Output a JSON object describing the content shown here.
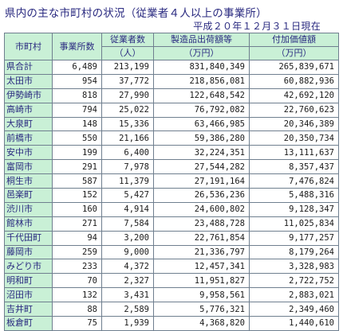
{
  "title": "県内の主な市町村の状況（従業者４人以上の事業所）",
  "subtitle": "平成２０年１２月３１日現在",
  "headers": [
    "市町村",
    "事業所数",
    "従業者数",
    "製造品出荷額等",
    "付加価値額"
  ],
  "units": [
    "",
    "",
    "（人）",
    "（万円）",
    "（万円）"
  ],
  "rows": [
    {
      "name": "県合計",
      "establishments": "6,489",
      "employees": "213,199",
      "shipments": "831,840,349",
      "value_added": "265,839,671"
    },
    {
      "name": "太田市",
      "establishments": "954",
      "employees": "37,772",
      "shipments": "218,856,081",
      "value_added": "60,882,936"
    },
    {
      "name": "伊勢崎市",
      "establishments": "818",
      "employees": "27,990",
      "shipments": "122,648,542",
      "value_added": "42,692,120"
    },
    {
      "name": "高崎市",
      "establishments": "794",
      "employees": "25,022",
      "shipments": "76,792,082",
      "value_added": "22,760,623"
    },
    {
      "name": "大泉町",
      "establishments": "148",
      "employees": "15,336",
      "shipments": "63,466,985",
      "value_added": "20,346,389"
    },
    {
      "name": "前橋市",
      "establishments": "550",
      "employees": "21,166",
      "shipments": "59,386,280",
      "value_added": "20,350,734"
    },
    {
      "name": "安中市",
      "establishments": "199",
      "employees": "6,400",
      "shipments": "32,224,351",
      "value_added": "13,111,637"
    },
    {
      "name": "富岡市",
      "establishments": "291",
      "employees": "7,978",
      "shipments": "27,544,282",
      "value_added": "8,357,437"
    },
    {
      "name": "桐生市",
      "establishments": "587",
      "employees": "11,379",
      "shipments": "27,191,164",
      "value_added": "7,476,824"
    },
    {
      "name": "邑楽町",
      "establishments": "152",
      "employees": "5,427",
      "shipments": "26,536,236",
      "value_added": "5,488,316"
    },
    {
      "name": "渋川市",
      "establishments": "160",
      "employees": "4,914",
      "shipments": "24,600,802",
      "value_added": "9,128,347"
    },
    {
      "name": "館林市",
      "establishments": "271",
      "employees": "7,584",
      "shipments": "23,488,728",
      "value_added": "11,025,834"
    },
    {
      "name": "千代田町",
      "establishments": "94",
      "employees": "3,200",
      "shipments": "22,761,854",
      "value_added": "9,177,257"
    },
    {
      "name": "藤岡市",
      "establishments": "259",
      "employees": "9,000",
      "shipments": "21,336,797",
      "value_added": "8,179,264"
    },
    {
      "name": "みどり市",
      "establishments": "233",
      "employees": "4,372",
      "shipments": "12,457,341",
      "value_added": "3,328,983"
    },
    {
      "name": "明和町",
      "establishments": "70",
      "employees": "2,327",
      "shipments": "11,951,827",
      "value_added": "2,722,752"
    },
    {
      "name": "沼田市",
      "establishments": "132",
      "employees": "3,431",
      "shipments": "9,958,561",
      "value_added": "2,883,021"
    },
    {
      "name": "吉井町",
      "establishments": "88",
      "employees": "2,589",
      "shipments": "5,776,321",
      "value_added": "2,349,460"
    },
    {
      "name": "板倉町",
      "establishments": "75",
      "employees": "1,939",
      "shipments": "4,368,820",
      "value_added": "1,440,610"
    }
  ]
}
